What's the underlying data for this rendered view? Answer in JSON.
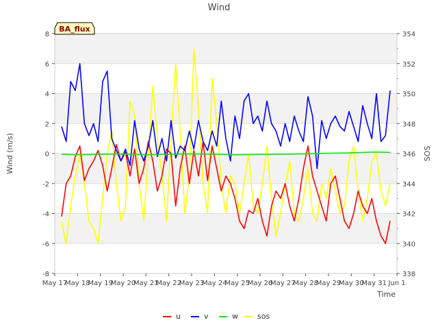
{
  "chart_data": {
    "type": "line",
    "title": "Wind",
    "xlabel": "Time",
    "ylabel": "Wind (m/s)",
    "y2label": "SOS",
    "site_label": "BA_flux",
    "ylim": [
      -8,
      8
    ],
    "y2lim": [
      338,
      354
    ],
    "yticks": [
      "-8",
      "-6",
      "-4",
      "-2",
      "0",
      "2",
      "4",
      "6",
      "8"
    ],
    "y2ticks": [
      "338",
      "340",
      "342",
      "344",
      "346",
      "348",
      "350",
      "352",
      "354"
    ],
    "xlim": [
      0,
      15
    ],
    "xticks": [
      "May 17",
      "May 18",
      "May 19",
      "May 20",
      "May 21",
      "May 22",
      "May 23",
      "May 24",
      "May 25",
      "May 26",
      "May 27",
      "May 28",
      "May 29",
      "May 30",
      "May 31",
      "Jun 1"
    ],
    "grid": true,
    "legend_position": "bottom",
    "series": [
      {
        "name": "u",
        "color": "#ff0000",
        "axis": "left",
        "x": [
          0.3,
          0.5,
          0.7,
          0.9,
          1.1,
          1.3,
          1.5,
          1.7,
          1.9,
          2.1,
          2.3,
          2.5,
          2.7,
          2.9,
          3.1,
          3.3,
          3.5,
          3.7,
          3.9,
          4.1,
          4.3,
          4.5,
          4.7,
          4.9,
          5.1,
          5.3,
          5.5,
          5.7,
          5.9,
          6.1,
          6.3,
          6.5,
          6.7,
          6.9,
          7.1,
          7.3,
          7.5,
          7.7,
          7.9,
          8.1,
          8.3,
          8.5,
          8.7,
          8.9,
          9.1,
          9.3,
          9.5,
          9.7,
          9.9,
          10.1,
          10.3,
          10.5,
          10.7,
          10.9,
          11.1,
          11.3,
          11.5,
          11.7,
          11.9,
          12.1,
          12.3,
          12.5,
          12.7,
          12.9,
          13.1,
          13.3,
          13.5,
          13.7,
          13.9,
          14.1,
          14.3,
          14.5,
          14.7
        ],
        "values": [
          -4.2,
          -2.0,
          -1.5,
          -0.2,
          0.5,
          -1.8,
          -1.0,
          -0.5,
          0.2,
          -0.8,
          -2.5,
          -1.0,
          0.6,
          -0.5,
          0.1,
          -1.5,
          0.3,
          -2.0,
          -1.0,
          0.8,
          -0.5,
          -2.5,
          -1.5,
          0.3,
          0.0,
          -3.5,
          -1.0,
          0.5,
          -2.0,
          0.2,
          -1.5,
          0.8,
          -1.8,
          0.5,
          -1.0,
          -2.5,
          -1.5,
          -2.0,
          -3.0,
          -4.5,
          -5.0,
          -3.8,
          -4.0,
          -3.0,
          -4.5,
          -5.5,
          -3.5,
          -2.5,
          -3.0,
          -2.0,
          -3.5,
          -4.5,
          -3.0,
          -1.0,
          0.5,
          -1.5,
          -2.5,
          -3.5,
          -4.5,
          -2.0,
          -1.5,
          -3.0,
          -4.5,
          -5.0,
          -4.0,
          -2.5,
          -3.5,
          -4.0,
          -3.0,
          -4.5,
          -5.5,
          -6.0,
          -4.5
        ]
      },
      {
        "name": "v",
        "color": "#0000ff",
        "axis": "left",
        "x": [
          0.3,
          0.5,
          0.7,
          0.9,
          1.1,
          1.3,
          1.5,
          1.7,
          1.9,
          2.1,
          2.3,
          2.5,
          2.7,
          2.9,
          3.1,
          3.3,
          3.5,
          3.7,
          3.9,
          4.1,
          4.3,
          4.5,
          4.7,
          4.9,
          5.1,
          5.3,
          5.5,
          5.7,
          5.9,
          6.1,
          6.3,
          6.5,
          6.7,
          6.9,
          7.1,
          7.3,
          7.5,
          7.7,
          7.9,
          8.1,
          8.3,
          8.5,
          8.7,
          8.9,
          9.1,
          9.3,
          9.5,
          9.7,
          9.9,
          10.1,
          10.3,
          10.5,
          10.7,
          10.9,
          11.1,
          11.3,
          11.5,
          11.7,
          11.9,
          12.1,
          12.3,
          12.5,
          12.7,
          12.9,
          13.1,
          13.3,
          13.5,
          13.7,
          13.9,
          14.1,
          14.3,
          14.5,
          14.7
        ],
        "values": [
          1.8,
          0.8,
          4.8,
          4.2,
          6.0,
          2.0,
          1.2,
          2.0,
          0.8,
          4.8,
          5.5,
          1.0,
          0.2,
          -0.5,
          0.3,
          -0.8,
          2.2,
          0.3,
          -0.5,
          0.5,
          2.2,
          -0.2,
          1.0,
          -0.5,
          2.2,
          -0.3,
          0.5,
          0.2,
          1.5,
          0.3,
          2.2,
          0.8,
          0.2,
          1.5,
          0.5,
          3.5,
          1.0,
          -0.5,
          2.5,
          1.0,
          3.5,
          4.0,
          2.0,
          2.5,
          1.5,
          3.5,
          2.0,
          1.5,
          0.5,
          2.0,
          0.8,
          2.5,
          1.5,
          0.8,
          3.8,
          2.5,
          -1.0,
          2.2,
          1.0,
          2.0,
          2.5,
          1.8,
          1.5,
          2.8,
          1.8,
          0.8,
          3.2,
          2.0,
          1.0,
          4.0,
          0.8,
          1.2,
          4.2
        ]
      },
      {
        "name": "w",
        "color": "#00ee00",
        "axis": "left",
        "x": [
          0.3,
          1.0,
          2.0,
          3.0,
          4.0,
          5.0,
          6.0,
          7.0,
          8.0,
          9.0,
          10.0,
          11.0,
          12.0,
          13.0,
          14.0,
          14.7
        ],
        "values": [
          -0.05,
          -0.08,
          -0.05,
          -0.03,
          -0.08,
          -0.05,
          -0.02,
          -0.05,
          -0.08,
          -0.06,
          -0.05,
          -0.02,
          0.02,
          0.05,
          0.1,
          0.08
        ]
      },
      {
        "name": "sos",
        "color": "#ffff00",
        "axis": "right",
        "x": [
          0.3,
          0.5,
          0.7,
          0.9,
          1.1,
          1.3,
          1.5,
          1.7,
          1.9,
          2.1,
          2.3,
          2.5,
          2.7,
          2.9,
          3.1,
          3.3,
          3.5,
          3.7,
          3.9,
          4.1,
          4.3,
          4.5,
          4.7,
          4.9,
          5.1,
          5.3,
          5.5,
          5.7,
          5.9,
          6.1,
          6.3,
          6.5,
          6.7,
          6.9,
          7.1,
          7.3,
          7.5,
          7.7,
          7.9,
          8.1,
          8.3,
          8.5,
          8.7,
          8.9,
          9.1,
          9.3,
          9.5,
          9.7,
          9.9,
          10.1,
          10.3,
          10.5,
          10.7,
          10.9,
          11.1,
          11.3,
          11.5,
          11.7,
          11.9,
          12.1,
          12.3,
          12.5,
          12.7,
          12.9,
          13.1,
          13.3,
          13.5,
          13.7,
          13.9,
          14.1,
          14.3,
          14.5,
          14.7
        ],
        "values": [
          341.5,
          340.0,
          342.5,
          344.5,
          346.0,
          344.0,
          341.5,
          341.0,
          340.0,
          343.0,
          346.0,
          347.5,
          344.0,
          341.5,
          342.5,
          349.5,
          348.5,
          344.0,
          341.5,
          346.0,
          350.5,
          347.0,
          344.5,
          341.5,
          347.0,
          352.0,
          347.5,
          342.0,
          344.5,
          353.0,
          349.0,
          344.0,
          342.0,
          351.0,
          348.0,
          344.0,
          342.0,
          344.5,
          344.0,
          342.0,
          344.0,
          346.0,
          342.5,
          342.0,
          344.0,
          346.5,
          343.0,
          340.5,
          342.0,
          344.0,
          345.5,
          342.0,
          341.5,
          343.0,
          345.0,
          342.0,
          341.5,
          344.0,
          343.0,
          345.0,
          343.5,
          342.0,
          342.5,
          345.5,
          346.5,
          343.5,
          341.5,
          343.0,
          345.5,
          346.0,
          343.5,
          342.5,
          344.0
        ]
      }
    ]
  }
}
